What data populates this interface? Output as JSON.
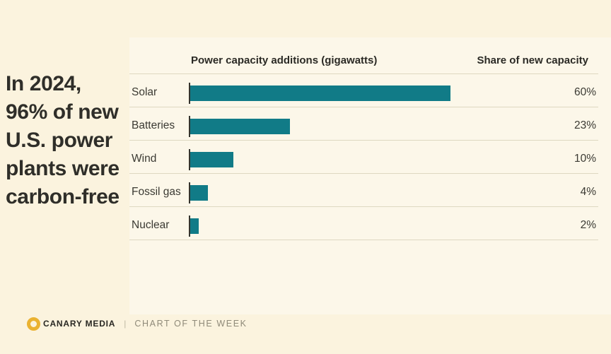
{
  "headline": {
    "lines": [
      "In 2024,",
      "96% of new",
      "U.S. power",
      "plants were",
      "carbon-free"
    ]
  },
  "chart_data": {
    "type": "bar",
    "orientation": "horizontal",
    "title": "In 2024, 96% of new U.S. power plants were carbon-free",
    "value_axis_header": "Power capacity additions (gigawatts)",
    "share_header": "Share of new capacity",
    "categories": [
      "Solar",
      "Batteries",
      "Wind",
      "Fossil gas",
      "Nuclear"
    ],
    "values": [
      60,
      23,
      10,
      4,
      2
    ],
    "value_labels": [
      "60%",
      "23%",
      "10%",
      "4%",
      "2%"
    ],
    "unit": "percent share of new capacity",
    "xlim": [
      0,
      64
    ],
    "grid": false,
    "legend": false,
    "bar_color": "#117b87"
  },
  "footer": {
    "brand": "CANARY MEDIA",
    "divider": "|",
    "series": "CHART OF THE WEEK"
  },
  "colors": {
    "background": "#fbf3de",
    "panel_background": "#fcf7e9",
    "bar": "#117b87",
    "separator": "#ded8c1",
    "headline_text": "#2f2e29",
    "label_text": "#3b3a33",
    "footer_gray": "#8f8a79",
    "logo_yellow": "#eab231"
  }
}
